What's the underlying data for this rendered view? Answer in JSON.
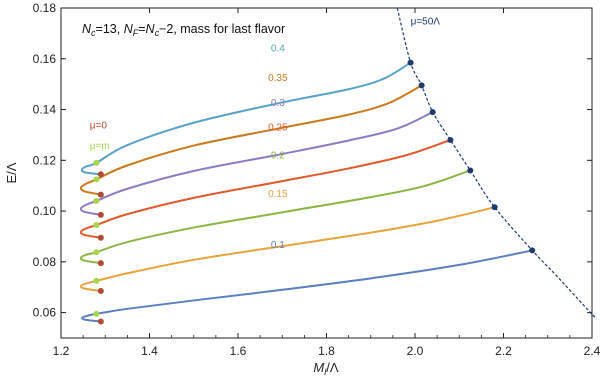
{
  "chart_data": {
    "type": "line",
    "title": "N_c=13, N_F=N_c−2, mass for last flavor",
    "title_parts": {
      "nc": "N",
      "nc_sub": "c",
      "nc_val": "=13, ",
      "nf": "N",
      "nf_sub": "F",
      "eq": "=",
      "nc2": "N",
      "nc2_sub": "c",
      "rest": "−2, mass for last flavor"
    },
    "xlabel": {
      "main": "M",
      "sub": "l",
      "rest": "/Λ"
    },
    "ylabel": "E/Λ",
    "xlim": [
      1.2,
      2.4
    ],
    "ylim": [
      0.05,
      0.18
    ],
    "x_ticks": [
      "1.2",
      "1.4",
      "1.6",
      "1.8",
      "2.0",
      "2.2",
      "2.4"
    ],
    "y_ticks": [
      "0.06",
      "0.08",
      "0.10",
      "0.12",
      "0.14",
      "0.16",
      "0.18"
    ],
    "grid": false,
    "series": [
      {
        "name": "0.1",
        "color": "#5b7fbf",
        "label_pos": [
          1.69,
          0.0855
        ],
        "mu0_point": [
          1.29,
          0.0565
        ],
        "mum_point": [
          1.28,
          0.0595
        ],
        "end_point": [
          2.265,
          0.0845
        ],
        "points": [
          [
            1.29,
            0.0565
          ],
          [
            1.255,
            0.0572
          ],
          [
            1.248,
            0.058
          ],
          [
            1.258,
            0.0587
          ],
          [
            1.28,
            0.0595
          ],
          [
            1.35,
            0.0615
          ],
          [
            1.5,
            0.0648
          ],
          [
            1.7,
            0.069
          ],
          [
            1.9,
            0.0735
          ],
          [
            2.1,
            0.0788
          ],
          [
            2.265,
            0.0845
          ]
        ]
      },
      {
        "name": "0.15",
        "color": "#e8a33c",
        "label_pos": [
          1.69,
          0.1055
        ],
        "mu0_point": [
          1.29,
          0.0685
        ],
        "mum_point": [
          1.28,
          0.0725
        ],
        "end_point": [
          2.18,
          0.1015
        ],
        "points": [
          [
            1.29,
            0.0685
          ],
          [
            1.253,
            0.0695
          ],
          [
            1.245,
            0.0705
          ],
          [
            1.257,
            0.0715
          ],
          [
            1.28,
            0.0725
          ],
          [
            1.35,
            0.0755
          ],
          [
            1.5,
            0.0808
          ],
          [
            1.7,
            0.0862
          ],
          [
            1.9,
            0.0915
          ],
          [
            2.05,
            0.0962
          ],
          [
            2.18,
            0.1015
          ]
        ]
      },
      {
        "name": "0.2",
        "color": "#8bb643",
        "label_pos": [
          1.69,
          0.1208
        ],
        "mu0_point": [
          1.29,
          0.0795
        ],
        "mum_point": [
          1.28,
          0.0838
        ],
        "end_point": [
          2.125,
          0.116
        ],
        "points": [
          [
            1.29,
            0.0795
          ],
          [
            1.253,
            0.0805
          ],
          [
            1.245,
            0.0816
          ],
          [
            1.257,
            0.0828
          ],
          [
            1.28,
            0.0838
          ],
          [
            1.35,
            0.0878
          ],
          [
            1.5,
            0.0935
          ],
          [
            1.7,
            0.0995
          ],
          [
            1.9,
            0.1055
          ],
          [
            2.02,
            0.1098
          ],
          [
            2.125,
            0.116
          ]
        ]
      },
      {
        "name": "0.25",
        "color": "#e05a2b",
        "label_pos": [
          1.69,
          0.1318
        ],
        "mu0_point": [
          1.29,
          0.0895
        ],
        "mum_point": [
          1.28,
          0.0945
        ],
        "end_point": [
          2.08,
          0.128
        ],
        "points": [
          [
            1.29,
            0.0895
          ],
          [
            1.253,
            0.0906
          ],
          [
            1.245,
            0.0918
          ],
          [
            1.257,
            0.0932
          ],
          [
            1.28,
            0.0945
          ],
          [
            1.35,
            0.0988
          ],
          [
            1.5,
            0.1052
          ],
          [
            1.7,
            0.1118
          ],
          [
            1.85,
            0.1168
          ],
          [
            1.98,
            0.122
          ],
          [
            2.08,
            0.128
          ]
        ]
      },
      {
        "name": "0.3",
        "color": "#8e7cc3",
        "label_pos": [
          1.69,
          0.1413
        ],
        "mu0_point": [
          1.29,
          0.0985
        ],
        "mum_point": [
          1.28,
          0.104
        ],
        "end_point": [
          2.04,
          0.139
        ],
        "points": [
          [
            1.29,
            0.0985
          ],
          [
            1.253,
            0.0997
          ],
          [
            1.245,
            0.101
          ],
          [
            1.257,
            0.1025
          ],
          [
            1.28,
            0.104
          ],
          [
            1.35,
            0.1088
          ],
          [
            1.5,
            0.1158
          ],
          [
            1.7,
            0.1225
          ],
          [
            1.85,
            0.1278
          ],
          [
            1.96,
            0.1325
          ],
          [
            2.04,
            0.139
          ]
        ]
      },
      {
        "name": "0.35",
        "color": "#c87a1c",
        "label_pos": [
          1.69,
          0.1513
        ],
        "mu0_point": [
          1.29,
          0.1065
        ],
        "mum_point": [
          1.28,
          0.1125
        ],
        "end_point": [
          2.015,
          0.1495
        ],
        "points": [
          [
            1.29,
            0.1065
          ],
          [
            1.253,
            0.1078
          ],
          [
            1.245,
            0.1092
          ],
          [
            1.257,
            0.1108
          ],
          [
            1.28,
            0.1125
          ],
          [
            1.35,
            0.118
          ],
          [
            1.5,
            0.1258
          ],
          [
            1.7,
            0.1328
          ],
          [
            1.85,
            0.138
          ],
          [
            1.94,
            0.1425
          ],
          [
            2.015,
            0.1495
          ]
        ]
      },
      {
        "name": "0.4",
        "color": "#5aa3c8",
        "label_pos": [
          1.69,
          0.1628
        ],
        "mu0_point": [
          1.29,
          0.1145
        ],
        "mum_point": [
          1.28,
          0.119
        ],
        "end_point": [
          1.99,
          0.1585
        ],
        "points": [
          [
            1.29,
            0.1145
          ],
          [
            1.255,
            0.1152
          ],
          [
            1.247,
            0.1163
          ],
          [
            1.257,
            0.1176
          ],
          [
            1.28,
            0.119
          ],
          [
            1.35,
            0.126
          ],
          [
            1.5,
            0.1348
          ],
          [
            1.7,
            0.1428
          ],
          [
            1.85,
            0.148
          ],
          [
            1.93,
            0.1522
          ],
          [
            1.99,
            0.1585
          ]
        ]
      }
    ],
    "envelope": {
      "label": "μ=50Λ",
      "label_pos": [
        1.99,
        0.1735
      ],
      "color": "#1f3a6e",
      "points": [
        [
          1.96,
          0.18
        ],
        [
          1.99,
          0.1585
        ],
        [
          2.015,
          0.1495
        ],
        [
          2.04,
          0.139
        ],
        [
          2.08,
          0.128
        ],
        [
          2.125,
          0.116
        ],
        [
          2.18,
          0.1015
        ],
        [
          2.265,
          0.0845
        ],
        [
          2.32,
          0.0745
        ],
        [
          2.37,
          0.065
        ],
        [
          2.41,
          0.0575
        ]
      ]
    },
    "annotations": [
      {
        "text": "μ=0",
        "color": "#b8432c",
        "pos": [
          1.265,
          0.1325
        ]
      },
      {
        "text": "μ=m",
        "color": "#a6d64a",
        "pos": [
          1.265,
          0.1245
        ]
      }
    ],
    "marker_colors": {
      "mu0": "#b04a34",
      "mum": "#a6d64a",
      "end": "#1f3a6e"
    }
  }
}
